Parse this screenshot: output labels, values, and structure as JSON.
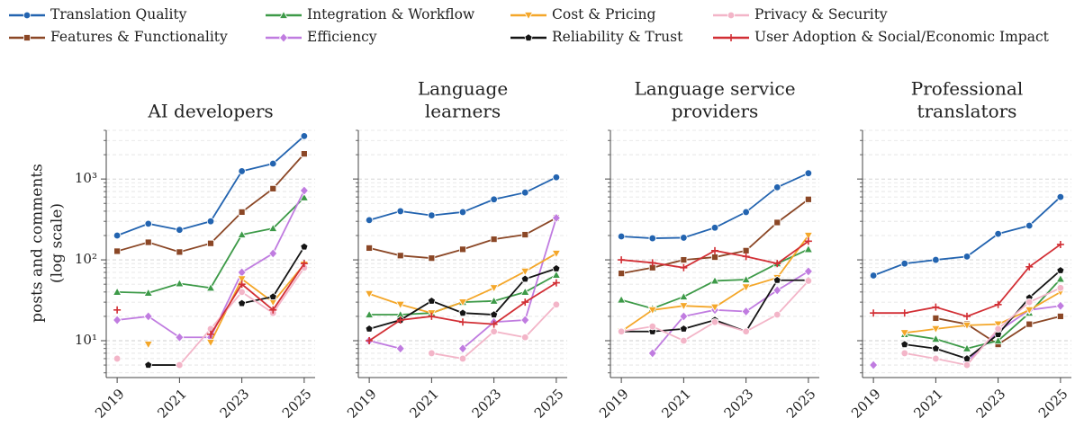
{
  "legend_series_ref": 0,
  "chart_data": [
    {
      "type": "line",
      "title": [
        "AI developers"
      ],
      "ylabel": [
        "posts and comments",
        "(log scale)"
      ],
      "log_y": true,
      "grid": true,
      "minor_grid": true,
      "x": [
        2019,
        2020,
        2021,
        2022,
        2023,
        2024,
        2025
      ],
      "xlim": [
        2018.65,
        2025.35
      ],
      "xticks": [
        2019,
        2021,
        2023,
        2025
      ],
      "ylim": [
        3.5,
        4000
      ],
      "yticks": [
        {
          "value": 10,
          "label": "10¹"
        },
        {
          "value": 100,
          "label": "10²"
        },
        {
          "value": 1000,
          "label": "10³"
        }
      ],
      "series": [
        {
          "name": "Translation Quality",
          "color": "#2364b0",
          "marker": "o",
          "values": [
            200,
            280,
            235,
            300,
            1250,
            1550,
            3400
          ]
        },
        {
          "name": "Features & Functionality",
          "color": "#8b4726",
          "marker": "s",
          "values": [
            128,
            165,
            125,
            160,
            390,
            760,
            2050
          ]
        },
        {
          "name": "Integration & Workflow",
          "color": "#3d9a48",
          "marker": "^",
          "values": [
            40,
            39,
            51,
            45,
            205,
            245,
            590
          ]
        },
        {
          "name": "Efficiency",
          "color": "#c07ce0",
          "marker": "D",
          "values": [
            18,
            20,
            11,
            11,
            70,
            120,
            720
          ]
        },
        {
          "name": "Cost & Pricing",
          "color": "#f4a72a",
          "marker": "v",
          "values": [
            null,
            9,
            null,
            9.5,
            58,
            30,
            88
          ]
        },
        {
          "name": "Reliability & Trust",
          "color": "#141414",
          "marker": "p",
          "values": [
            null,
            5,
            5,
            null,
            29,
            35,
            145
          ]
        },
        {
          "name": "Privacy & Security",
          "color": "#f3b5c8",
          "marker": "o",
          "values": [
            6,
            null,
            5,
            14,
            40,
            22,
            80
          ]
        },
        {
          "name": "User Adoption & Social/Economic Impact",
          "color": "#d22f35",
          "marker": "+",
          "values": [
            24,
            null,
            null,
            12,
            50,
            24,
            90
          ]
        }
      ]
    },
    {
      "type": "line",
      "title": [
        "Language",
        "learners"
      ],
      "log_y": true,
      "grid": true,
      "minor_grid": true,
      "x": [
        2019,
        2020,
        2021,
        2022,
        2023,
        2024,
        2025
      ],
      "xlim": [
        2018.65,
        2025.35
      ],
      "xticks": [
        2019,
        2021,
        2023,
        2025
      ],
      "ylim": [
        3.5,
        4000
      ],
      "yticks": [
        10,
        100,
        1000
      ],
      "series": [
        {
          "name": "Translation Quality",
          "color": "#2364b0",
          "marker": "o",
          "values": [
            310,
            400,
            355,
            390,
            560,
            680,
            1050
          ]
        },
        {
          "name": "Features & Functionality",
          "color": "#8b4726",
          "marker": "s",
          "values": [
            140,
            113,
            105,
            135,
            180,
            205,
            330
          ]
        },
        {
          "name": "Integration & Workflow",
          "color": "#3d9a48",
          "marker": "^",
          "values": [
            21,
            21,
            22,
            30,
            31,
            40,
            65
          ]
        },
        {
          "name": "Efficiency",
          "color": "#c07ce0",
          "marker": "D",
          "values": [
            10,
            8,
            null,
            8,
            17,
            18,
            330
          ]
        },
        {
          "name": "Cost & Pricing",
          "color": "#f4a72a",
          "marker": "v",
          "values": [
            38,
            28,
            22,
            30,
            45,
            72,
            120
          ]
        },
        {
          "name": "Reliability & Trust",
          "color": "#141414",
          "marker": "p",
          "values": [
            14,
            18,
            31,
            22,
            21,
            58,
            78
          ]
        },
        {
          "name": "Privacy & Security",
          "color": "#f3b5c8",
          "marker": "o",
          "values": [
            null,
            null,
            7,
            6,
            13,
            11,
            28
          ]
        },
        {
          "name": "User Adoption & Social/Economic Impact",
          "color": "#d22f35",
          "marker": "+",
          "values": [
            10,
            18,
            20,
            17,
            16,
            30,
            52
          ]
        }
      ]
    },
    {
      "type": "line",
      "title": [
        "Language service",
        "providers"
      ],
      "log_y": true,
      "grid": true,
      "minor_grid": true,
      "x": [
        2019,
        2020,
        2021,
        2022,
        2023,
        2024,
        2025
      ],
      "xlim": [
        2018.65,
        2025.35
      ],
      "xticks": [
        2019,
        2021,
        2023,
        2025
      ],
      "ylim": [
        3.5,
        4000
      ],
      "yticks": [
        10,
        100,
        1000
      ],
      "series": [
        {
          "name": "Translation Quality",
          "color": "#2364b0",
          "marker": "o",
          "values": [
            195,
            185,
            188,
            250,
            390,
            790,
            1180
          ]
        },
        {
          "name": "Features & Functionality",
          "color": "#8b4726",
          "marker": "s",
          "values": [
            68,
            80,
            100,
            108,
            130,
            290,
            560
          ]
        },
        {
          "name": "Integration & Workflow",
          "color": "#3d9a48",
          "marker": "^",
          "values": [
            32,
            25,
            35,
            55,
            57,
            90,
            135
          ]
        },
        {
          "name": "Efficiency",
          "color": "#c07ce0",
          "marker": "D",
          "values": [
            null,
            7,
            20,
            24,
            23,
            42,
            72
          ]
        },
        {
          "name": "Cost & Pricing",
          "color": "#f4a72a",
          "marker": "v",
          "values": [
            13,
            24,
            27,
            26,
            46,
            60,
            200
          ]
        },
        {
          "name": "Reliability & Trust",
          "color": "#141414",
          "marker": "p",
          "values": [
            13,
            13,
            14,
            18,
            13,
            56,
            56
          ]
        },
        {
          "name": "Privacy & Security",
          "color": "#f3b5c8",
          "marker": "o",
          "values": [
            13,
            15,
            10,
            17,
            13,
            21,
            55
          ]
        },
        {
          "name": "User Adoption & Social/Economic Impact",
          "color": "#d22f35",
          "marker": "+",
          "values": [
            100,
            92,
            80,
            130,
            110,
            90,
            170
          ]
        }
      ]
    },
    {
      "type": "line",
      "title": [
        "Professional",
        "translators"
      ],
      "log_y": true,
      "grid": true,
      "minor_grid": true,
      "x": [
        2019,
        2020,
        2021,
        2022,
        2023,
        2024,
        2025
      ],
      "xlim": [
        2018.65,
        2025.35
      ],
      "xticks": [
        2019,
        2021,
        2023,
        2025
      ],
      "ylim": [
        3.5,
        4000
      ],
      "yticks": [
        10,
        100,
        1000
      ],
      "series": [
        {
          "name": "Translation Quality",
          "color": "#2364b0",
          "marker": "o",
          "values": [
            64,
            90,
            100,
            110,
            210,
            265,
            600
          ]
        },
        {
          "name": "Features & Functionality",
          "color": "#8b4726",
          "marker": "s",
          "values": [
            null,
            null,
            19,
            16,
            9,
            16,
            20
          ]
        },
        {
          "name": "Integration & Workflow",
          "color": "#3d9a48",
          "marker": "^",
          "values": [
            null,
            12,
            10.5,
            8,
            10,
            22,
            58
          ]
        },
        {
          "name": "Efficiency",
          "color": "#c07ce0",
          "marker": "D",
          "values": [
            5,
            null,
            null,
            5.5,
            13,
            24,
            27
          ]
        },
        {
          "name": "Cost & Pricing",
          "color": "#f4a72a",
          "marker": "v",
          "values": [
            null,
            12.5,
            14,
            15.5,
            16,
            24,
            40
          ]
        },
        {
          "name": "Reliability & Trust",
          "color": "#141414",
          "marker": "p",
          "values": [
            null,
            9,
            8,
            6,
            12,
            34,
            74
          ]
        },
        {
          "name": "Privacy & Security",
          "color": "#f3b5c8",
          "marker": "o",
          "values": [
            null,
            7,
            6,
            5,
            14,
            30,
            45
          ]
        },
        {
          "name": "User Adoption & Social/Economic Impact",
          "color": "#d22f35",
          "marker": "+",
          "values": [
            22,
            22,
            26,
            20,
            28,
            82,
            155
          ]
        }
      ]
    }
  ]
}
